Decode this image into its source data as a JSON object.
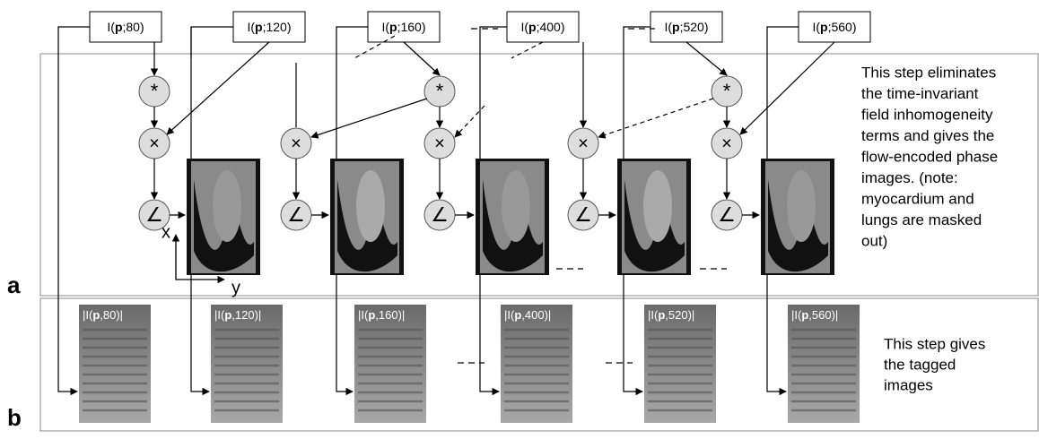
{
  "inputs": [
    [
      "I(",
      "p",
      ";80)"
    ],
    [
      "I(",
      "p",
      ";120)"
    ],
    [
      "I(",
      "p",
      ";160)"
    ],
    [
      "I(",
      "p",
      ";400)"
    ],
    [
      "I(",
      "p",
      ";520)"
    ],
    [
      "I(",
      "p",
      ";560)"
    ]
  ],
  "operators": {
    "conjugate": "*",
    "multiply": "×",
    "angle": "∠"
  },
  "panel_a": {
    "label": "a",
    "axis_x": "x",
    "axis_y": "y",
    "note": [
      "This step eliminates",
      "the time-invariant",
      "field inhomogeneity",
      "terms and gives the",
      "flow-encoded phase",
      "images. (note:",
      "myocardium and",
      "lungs are masked",
      "out)"
    ]
  },
  "panel_b": {
    "label": "b",
    "images": [
      [
        "|I(",
        "p",
        ",80)|"
      ],
      [
        "|I(",
        "p",
        ",120)|"
      ],
      [
        "|I(",
        "p",
        ",160)|"
      ],
      [
        "|I(",
        "p",
        ",400)|"
      ],
      [
        "|I(",
        "p",
        ",520)|"
      ],
      [
        "|I(",
        "p",
        ",560)|"
      ]
    ],
    "note": [
      "This step gives",
      "the tagged",
      "images"
    ]
  }
}
